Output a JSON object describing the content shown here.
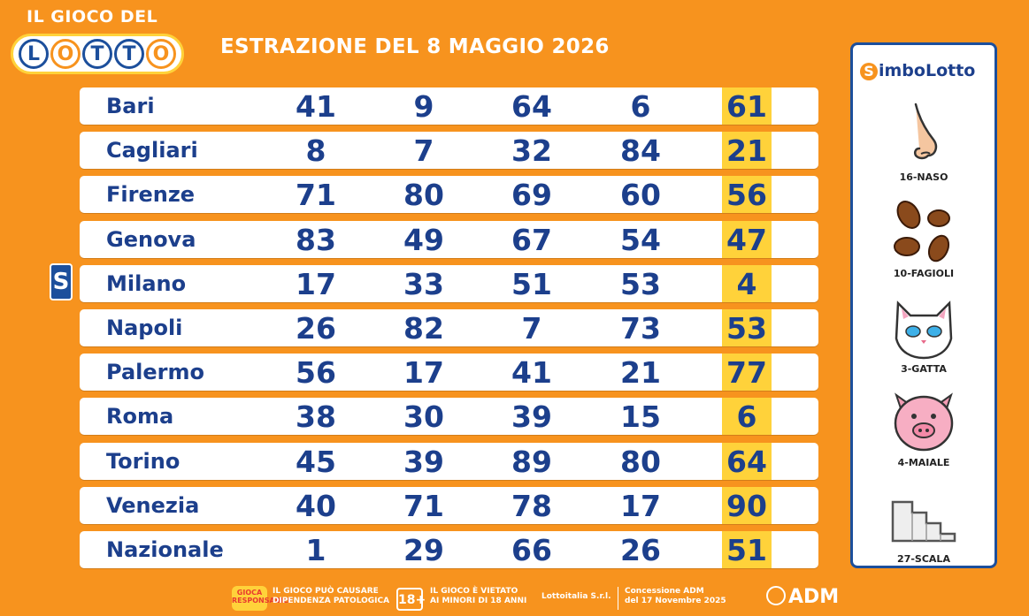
{
  "logo": {
    "top_text": "IL GIOCO DEL",
    "balls": [
      "L",
      "O",
      "T",
      "T",
      "O"
    ]
  },
  "title": "ESTRAZIONE DEL 8 MAGGIO 2026",
  "rows": [
    {
      "city": "Bari",
      "n": [
        "41",
        "9",
        "64",
        "6",
        "61"
      ]
    },
    {
      "city": "Cagliari",
      "n": [
        "8",
        "7",
        "32",
        "84",
        "21"
      ]
    },
    {
      "city": "Firenze",
      "n": [
        "71",
        "80",
        "69",
        "60",
        "56"
      ]
    },
    {
      "city": "Genova",
      "n": [
        "83",
        "49",
        "67",
        "54",
        "47"
      ]
    },
    {
      "city": "Milano",
      "n": [
        "17",
        "33",
        "51",
        "53",
        "4"
      ]
    },
    {
      "city": "Napoli",
      "n": [
        "26",
        "82",
        "7",
        "73",
        "53"
      ]
    },
    {
      "city": "Palermo",
      "n": [
        "56",
        "17",
        "41",
        "21",
        "77"
      ]
    },
    {
      "city": "Roma",
      "n": [
        "38",
        "30",
        "39",
        "15",
        "6"
      ]
    },
    {
      "city": "Torino",
      "n": [
        "45",
        "39",
        "89",
        "80",
        "64"
      ]
    },
    {
      "city": "Venezia",
      "n": [
        "40",
        "71",
        "78",
        "17",
        "90"
      ]
    },
    {
      "city": "Nazionale",
      "n": [
        "1",
        "29",
        "66",
        "26",
        "51"
      ]
    }
  ],
  "simbolotto_badge": "S",
  "panel": {
    "title_s": "S",
    "title_rest": "imboLotto",
    "symbols": [
      {
        "label": "16-NASO",
        "icon": "nose-icon"
      },
      {
        "label": "10-FAGIOLI",
        "icon": "beans-icon"
      },
      {
        "label": "3-GATTA",
        "icon": "cat-icon"
      },
      {
        "label": "4-MAIALE",
        "icon": "pig-icon"
      },
      {
        "label": "27-SCALA",
        "icon": "stairs-icon"
      }
    ]
  },
  "footer": {
    "logo_text": "GIOCA RESPONSABILE",
    "warning1_a": "IL GIOCO PUÒ CAUSARE",
    "warning1_b": "DIPENDENZA PATOLOGICA",
    "age": "18+",
    "warning2_a": "IL GIOCO È VIETATO",
    "warning2_b": "AI MINORI DI 18 ANNI",
    "company": "Lottoitalia S.r.l.",
    "concession_a": "Concessione ADM",
    "concession_b": "del 17 Novembre 2025",
    "adm": "ADM"
  },
  "colors": {
    "background": "#f7931e",
    "blue": "#1c3f8c",
    "highlight": "#ffd23a"
  }
}
